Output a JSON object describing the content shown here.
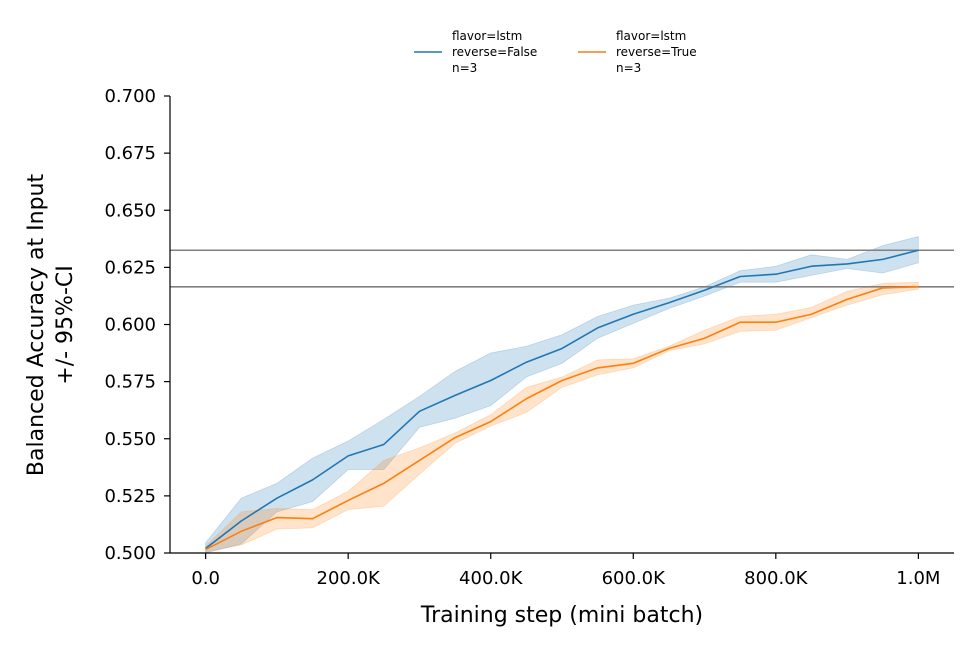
{
  "chart_data": {
    "type": "line",
    "xlabel": "Training step (mini batch)",
    "ylabel_lines": [
      "Balanced Accuracy at Input",
      "+/- 95%-CI"
    ],
    "xlim": [
      -50000,
      1050000
    ],
    "ylim": [
      0.5,
      0.7
    ],
    "x_ticks": [
      0,
      200000,
      400000,
      600000,
      800000,
      1000000
    ],
    "x_tick_labels": [
      "0.0",
      "200.0K",
      "400.0K",
      "600.0K",
      "800.0K",
      "1.0M"
    ],
    "y_ticks": [
      0.5,
      0.525,
      0.55,
      0.575,
      0.6,
      0.625,
      0.65,
      0.675,
      0.7
    ],
    "y_tick_labels": [
      "0.500",
      "0.525",
      "0.550",
      "0.575",
      "0.600",
      "0.625",
      "0.650",
      "0.675",
      "0.700"
    ],
    "hlines": [
      0.6325,
      0.6165
    ],
    "hline_color": "#808080",
    "legend_position": "top-center",
    "grid": false,
    "x": [
      0,
      50000,
      100000,
      150000,
      200000,
      250000,
      300000,
      350000,
      400000,
      450000,
      500000,
      550000,
      600000,
      650000,
      700000,
      750000,
      800000,
      850000,
      900000,
      950000,
      1000000
    ],
    "series": [
      {
        "name": "flavor=lstm\nreverse=False\nn=3",
        "legend_lines": [
          "flavor=lstm",
          "reverse=False",
          "n=3"
        ],
        "color": "#1f77b4",
        "values": [
          0.502,
          0.514,
          0.524,
          0.532,
          0.5425,
          0.5475,
          0.562,
          0.569,
          0.5755,
          0.5835,
          0.5895,
          0.5985,
          0.6045,
          0.6095,
          0.615,
          0.621,
          0.622,
          0.6255,
          0.6265,
          0.6285,
          0.6325
        ],
        "ci_low": [
          0.5,
          0.504,
          0.518,
          0.5225,
          0.5365,
          0.5365,
          0.555,
          0.559,
          0.5645,
          0.577,
          0.583,
          0.594,
          0.6005,
          0.607,
          0.6125,
          0.6185,
          0.6185,
          0.6215,
          0.6245,
          0.6225,
          0.627
        ],
        "ci_high": [
          0.5045,
          0.524,
          0.5305,
          0.5415,
          0.549,
          0.5585,
          0.5685,
          0.5795,
          0.5875,
          0.5905,
          0.5955,
          0.6035,
          0.6085,
          0.6115,
          0.6165,
          0.6235,
          0.6255,
          0.6305,
          0.6285,
          0.6345,
          0.6385
        ]
      },
      {
        "name": "flavor=lstm\nreverse=True\nn=3",
        "legend_lines": [
          "flavor=lstm",
          "reverse=True",
          "n=3"
        ],
        "color": "#ff7f0e",
        "values": [
          0.5015,
          0.5095,
          0.5155,
          0.515,
          0.523,
          0.5305,
          0.5405,
          0.5505,
          0.5575,
          0.5675,
          0.5755,
          0.581,
          0.583,
          0.5895,
          0.594,
          0.601,
          0.601,
          0.6045,
          0.611,
          0.616,
          0.6165
        ],
        "ci_low": [
          0.5005,
          0.5035,
          0.5105,
          0.511,
          0.519,
          0.5205,
          0.5345,
          0.548,
          0.5555,
          0.5615,
          0.5725,
          0.578,
          0.581,
          0.5885,
          0.5915,
          0.597,
          0.5975,
          0.603,
          0.6085,
          0.613,
          0.6155
        ],
        "ci_high": [
          0.503,
          0.518,
          0.5195,
          0.519,
          0.527,
          0.5405,
          0.546,
          0.5525,
          0.5605,
          0.5725,
          0.577,
          0.5845,
          0.585,
          0.5905,
          0.5975,
          0.6035,
          0.6045,
          0.6075,
          0.6145,
          0.618,
          0.6185
        ]
      }
    ]
  }
}
